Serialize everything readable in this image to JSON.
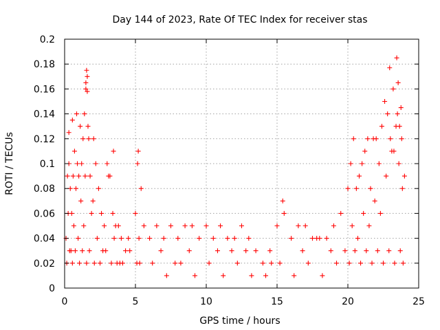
{
  "chart_data": {
    "type": "scatter",
    "title": "Day 144 of 2023, Rate Of TEC Index for receiver stas",
    "xlabel": "GPS time / hours",
    "ylabel": "ROTI / TECUs",
    "xlim": [
      0,
      25
    ],
    "ylim": [
      0,
      0.2
    ],
    "x_ticks": [
      "0",
      "5",
      "10",
      "15",
      "20",
      "25"
    ],
    "y_ticks": [
      "0",
      "0.02",
      "0.04",
      "0.06",
      "0.08",
      "0.1",
      "0.12",
      "0.14",
      "0.16",
      "0.18",
      "0.2"
    ],
    "grid": true,
    "marker": "plus",
    "point_color": "#ff0000",
    "series": [
      {
        "x": [
          0.1,
          0.2,
          0.3,
          0.4,
          0.5,
          0.6,
          0.7,
          0.8,
          0.9,
          1.0,
          1.1,
          1.2,
          1.3,
          1.4,
          1.5,
          1.6,
          1.7,
          1.8,
          1.9,
          2.0,
          2.2,
          2.4,
          2.6,
          2.8,
          3.0,
          3.2,
          3.4,
          3.6,
          3.8,
          4.0,
          4.3,
          4.6,
          5.0,
          5.2,
          5.4,
          5.6,
          6.0,
          6.5,
          7.0,
          7.5,
          8.0,
          8.5,
          9.0,
          9.5,
          10.0,
          10.5,
          11.0,
          11.5,
          12.0,
          12.5,
          13.0,
          13.5,
          14.0,
          14.5,
          15.0,
          15.5,
          16.0,
          16.5,
          17.0,
          17.5,
          18.0,
          18.5,
          19.0,
          19.5,
          20.0,
          20.2,
          20.4,
          20.6,
          20.8,
          21.0,
          21.2,
          21.4,
          21.6,
          21.8,
          22.0,
          22.2,
          22.4,
          22.6,
          22.8,
          23.0,
          23.2,
          23.4,
          23.6,
          23.8,
          24.0,
          0.15,
          0.35,
          0.55,
          0.75,
          1.05,
          1.25,
          1.55,
          1.75,
          2.1,
          2.5,
          2.9,
          3.3,
          3.7,
          4.1,
          5.1,
          5.3,
          6.2,
          7.2,
          8.2,
          9.2,
          10.2,
          11.2,
          12.2,
          13.2,
          14.2,
          15.2,
          16.2,
          17.2,
          18.2,
          19.2,
          20.1,
          20.5,
          20.9,
          21.3,
          21.7,
          22.1,
          22.5,
          22.9,
          23.3,
          23.7,
          23.9,
          0.25,
          0.65,
          1.15,
          1.45,
          1.65,
          2.3,
          3.5,
          4.5,
          5.15,
          6.8,
          8.8,
          10.8,
          12.8,
          14.6,
          16.8,
          18.8,
          20.3,
          21.1,
          21.9,
          22.7,
          23.1,
          23.5,
          23.85,
          0.45,
          0.95,
          1.35,
          2.7,
          3.9,
          5.25,
          7.8,
          11.8,
          15.4,
          17.8,
          19.8,
          20.7,
          21.5,
          22.3,
          23.25,
          23.65,
          0.85,
          1.5,
          1.55,
          2.05,
          3.1,
          3.45,
          23.45,
          23.55,
          23.75,
          22.95,
          1.6,
          0.3,
          0.55
        ],
        "y": [
          0.04,
          0.09,
          0.1,
          0.08,
          0.06,
          0.09,
          0.11,
          0.08,
          0.1,
          0.09,
          0.13,
          0.1,
          0.12,
          0.14,
          0.16,
          0.17,
          0.12,
          0.09,
          0.06,
          0.07,
          0.1,
          0.08,
          0.06,
          0.05,
          0.1,
          0.09,
          0.06,
          0.05,
          0.05,
          0.04,
          0.03,
          0.03,
          0.06,
          0.11,
          0.08,
          0.05,
          0.04,
          0.05,
          0.04,
          0.05,
          0.04,
          0.05,
          0.05,
          0.04,
          0.05,
          0.04,
          0.05,
          0.04,
          0.04,
          0.05,
          0.04,
          0.03,
          0.02,
          0.03,
          0.05,
          0.06,
          0.04,
          0.05,
          0.05,
          0.04,
          0.04,
          0.04,
          0.05,
          0.06,
          0.08,
          0.1,
          0.12,
          0.08,
          0.09,
          0.1,
          0.11,
          0.12,
          0.08,
          0.12,
          0.12,
          0.1,
          0.13,
          0.15,
          0.14,
          0.12,
          0.16,
          0.13,
          0.1,
          0.12,
          0.09,
          0.02,
          0.03,
          0.02,
          0.03,
          0.02,
          0.03,
          0.02,
          0.03,
          0.02,
          0.02,
          0.03,
          0.02,
          0.02,
          0.02,
          0.02,
          0.02,
          0.02,
          0.01,
          0.02,
          0.01,
          0.02,
          0.01,
          0.02,
          0.01,
          0.01,
          0.02,
          0.01,
          0.02,
          0.01,
          0.02,
          0.02,
          0.03,
          0.02,
          0.03,
          0.02,
          0.03,
          0.02,
          0.03,
          0.02,
          0.03,
          0.02,
          0.06,
          0.05,
          0.07,
          0.09,
          0.13,
          0.04,
          0.04,
          0.04,
          0.1,
          0.03,
          0.03,
          0.03,
          0.03,
          0.02,
          0.03,
          0.03,
          0.05,
          0.06,
          0.07,
          0.09,
          0.11,
          0.14,
          0.08,
          0.03,
          0.04,
          0.05,
          0.03,
          0.02,
          0.04,
          0.02,
          0.03,
          0.07,
          0.04,
          0.03,
          0.04,
          0.05,
          0.06,
          0.11,
          0.13,
          0.14,
          0.165,
          0.175,
          0.12,
          0.09,
          0.11,
          0.185,
          0.165,
          0.145,
          0.177,
          0.158,
          0.125,
          0.135
        ]
      }
    ]
  }
}
